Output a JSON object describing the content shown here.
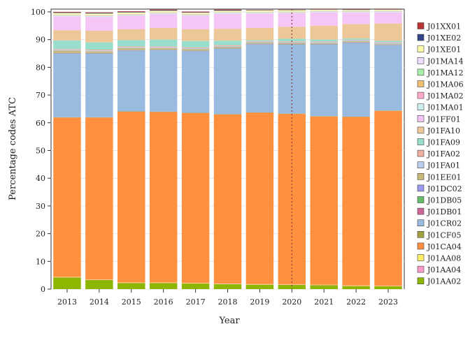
{
  "chart_data": {
    "type": "bar",
    "stacked": true,
    "categories": [
      "2013",
      "2014",
      "2015",
      "2016",
      "2017",
      "2018",
      "2019",
      "2020",
      "2021",
      "2022",
      "2023"
    ],
    "xlabel": "Year",
    "ylabel": "Percentage codes ATC",
    "ylim": [
      0,
      101
    ],
    "yticks": [
      0,
      10,
      20,
      30,
      40,
      50,
      60,
      70,
      80,
      90,
      100
    ],
    "legend_position": "right",
    "vline_at": "2020",
    "series": [
      {
        "name": "J01AA02",
        "color": "#8db600",
        "values": [
          4.2,
          3.3,
          2.2,
          2.2,
          2.0,
          1.8,
          1.6,
          1.5,
          1.4,
          1.1,
          1.0
        ]
      },
      {
        "name": "J01AA04",
        "color": "#ff99cc",
        "values": [
          0.1,
          0.1,
          0.1,
          0.1,
          0.1,
          0.1,
          0.1,
          0.1,
          0.1,
          0.1,
          0.1
        ]
      },
      {
        "name": "J01AA08",
        "color": "#ffee66",
        "values": [
          0.1,
          0.1,
          0.1,
          0.1,
          0.1,
          0.1,
          0.1,
          0.1,
          0.1,
          0.1,
          0.1
        ]
      },
      {
        "name": "J01CA04",
        "color": "#ff9040",
        "values": [
          57.5,
          58.4,
          61.6,
          61.5,
          61.3,
          61.0,
          61.8,
          61.5,
          60.7,
          60.8,
          63.1
        ]
      },
      {
        "name": "J01CF05",
        "color": "#a0a040",
        "values": [
          0.1,
          0.1,
          0.1,
          0.1,
          0.1,
          0.1,
          0.1,
          0.1,
          0.1,
          0.1,
          0.1
        ]
      },
      {
        "name": "J01CR02",
        "color": "#99bbe0",
        "values": [
          22.9,
          22.9,
          21.9,
          22.1,
          22.2,
          23.6,
          24.6,
          24.9,
          25.8,
          26.6,
          23.6
        ]
      },
      {
        "name": "J01DB01",
        "color": "#cc6699",
        "values": [
          0.1,
          0.1,
          0.1,
          0.1,
          0.1,
          0.1,
          0.1,
          0.1,
          0.1,
          0.1,
          0.1
        ]
      },
      {
        "name": "J01DB05",
        "color": "#66bb66",
        "values": [
          0.1,
          0.1,
          0.1,
          0.1,
          0.1,
          0.1,
          0.1,
          0.1,
          0.1,
          0.1,
          0.1
        ]
      },
      {
        "name": "J01DC02",
        "color": "#9999ee",
        "values": [
          0.1,
          0.1,
          0.1,
          0.1,
          0.1,
          0.1,
          0.1,
          0.1,
          0.1,
          0.1,
          0.1
        ]
      },
      {
        "name": "J01EE01",
        "color": "#c8b878",
        "values": [
          0.8,
          0.6,
          0.6,
          0.5,
          0.5,
          0.4,
          0.4,
          0.4,
          0.3,
          0.3,
          0.3
        ]
      },
      {
        "name": "J01FA01",
        "color": "#bbccee",
        "values": [
          0.3,
          0.3,
          0.3,
          0.3,
          0.3,
          0.3,
          0.3,
          0.3,
          0.3,
          0.3,
          0.3
        ]
      },
      {
        "name": "J01FA02",
        "color": "#f0b0a0",
        "values": [
          0.3,
          0.3,
          0.3,
          0.3,
          0.3,
          0.3,
          0.2,
          0.2,
          0.2,
          0.2,
          0.2
        ]
      },
      {
        "name": "J01FA09",
        "color": "#99ddcc",
        "values": [
          3.1,
          2.6,
          2.3,
          2.5,
          2.3,
          1.6,
          0.3,
          0.9,
          0.7,
          0.5,
          0.5
        ]
      },
      {
        "name": "J01FA10",
        "color": "#eec799",
        "values": [
          3.7,
          4.2,
          3.9,
          4.2,
          4.2,
          4.3,
          4.4,
          4.3,
          5.0,
          5.2,
          6.2
        ]
      },
      {
        "name": "J01FF01",
        "color": "#f5c6f5",
        "values": [
          5.0,
          5.0,
          4.9,
          5.0,
          4.9,
          5.4,
          5.2,
          4.9,
          4.8,
          4.1,
          4.0
        ]
      },
      {
        "name": "J01MA01",
        "color": "#cceeee",
        "values": [
          0.3,
          0.3,
          0.3,
          0.3,
          0.3,
          0.3,
          0.3,
          0.3,
          0.3,
          0.3,
          0.3
        ]
      },
      {
        "name": "J01MA02",
        "color": "#ffaacc",
        "values": [
          0.1,
          0.1,
          0.1,
          0.1,
          0.1,
          0.1,
          0.1,
          0.1,
          0.1,
          0.1,
          0.1
        ]
      },
      {
        "name": "J01MA06",
        "color": "#f0c070",
        "values": [
          0.1,
          0.1,
          0.1,
          0.1,
          0.1,
          0.1,
          0.1,
          0.1,
          0.1,
          0.1,
          0.1
        ]
      },
      {
        "name": "J01MA12",
        "color": "#aaeeaa",
        "values": [
          0.1,
          0.1,
          0.1,
          0.1,
          0.1,
          0.1,
          0.1,
          0.1,
          0.1,
          0.1,
          0.1
        ]
      },
      {
        "name": "J01MA14",
        "color": "#eeddff",
        "values": [
          0.1,
          0.1,
          0.1,
          0.1,
          0.1,
          0.1,
          0.1,
          0.1,
          0.1,
          0.1,
          0.1
        ]
      },
      {
        "name": "J01XE01",
        "color": "#ffffaa",
        "values": [
          0.5,
          0.5,
          0.5,
          0.5,
          0.4,
          0.4,
          0.4,
          0.4,
          0.3,
          0.3,
          0.3
        ]
      },
      {
        "name": "J01XE02",
        "color": "#334488",
        "values": [
          0.2,
          0.2,
          0.2,
          0.2,
          0.2,
          0.2,
          0.1,
          0.1,
          0.1,
          0.1,
          0.1
        ]
      },
      {
        "name": "J01XX01",
        "color": "#bb3333",
        "values": [
          0.2,
          0.2,
          0.2,
          0.2,
          0.2,
          0.2,
          0.1,
          0.1,
          0.1,
          0.1,
          0.1
        ]
      }
    ]
  }
}
